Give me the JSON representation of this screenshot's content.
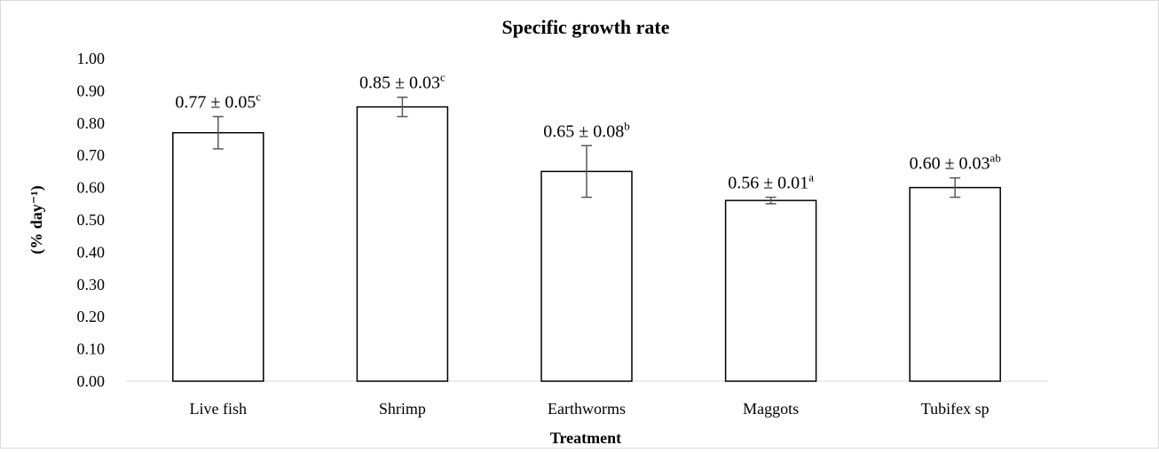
{
  "chart_data": {
    "type": "bar",
    "title": "Specific growth rate",
    "xlabel": "Treatment",
    "ylabel": "(% day⁻¹)",
    "ylim": [
      0,
      1.0
    ],
    "y_ticks": [
      "0.00",
      "0.10",
      "0.20",
      "0.30",
      "0.40",
      "0.50",
      "0.60",
      "0.70",
      "0.80",
      "0.90",
      "1.00"
    ],
    "categories": [
      "Live fish",
      "Shrimp",
      "Earthworms",
      "Maggots",
      "Tubifex sp"
    ],
    "values": [
      0.77,
      0.85,
      0.65,
      0.56,
      0.6
    ],
    "errors": [
      0.05,
      0.03,
      0.08,
      0.01,
      0.03
    ],
    "data_labels": [
      {
        "text": "0.77 ± 0.05",
        "sup": "c"
      },
      {
        "text": "0.85 ± 0.03",
        "sup": "c"
      },
      {
        "text": "0.65 ± 0.08",
        "sup": "b"
      },
      {
        "text": "0.56 ± 0.01",
        "sup": "a"
      },
      {
        "text": "0.60 ± 0.03",
        "sup": "ab"
      }
    ],
    "grid": false,
    "legend": "none",
    "bar_fill": "#ffffff",
    "bar_stroke": "#000000",
    "error_bar_color": "#595959"
  }
}
